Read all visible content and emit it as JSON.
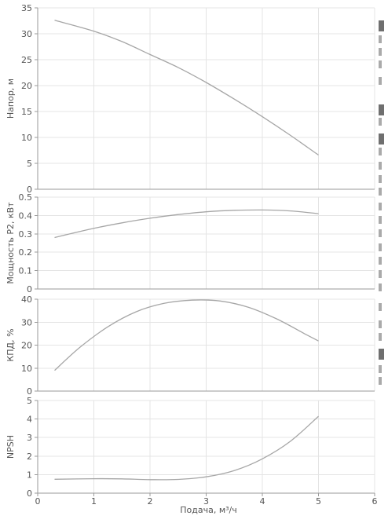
{
  "chart_data": [
    {
      "type": "line",
      "ylabel": "Напор, м",
      "ylim": [
        0,
        35
      ],
      "yticks": [
        0,
        5,
        10,
        15,
        20,
        25,
        30,
        35
      ],
      "xlim": [
        0,
        6
      ],
      "series": [
        {
          "x": [
            0.3,
            1.0,
            1.5,
            2.0,
            2.5,
            3.0,
            3.5,
            4.0,
            4.5,
            5.0
          ],
          "y": [
            32.6,
            30.5,
            28.5,
            26.0,
            23.5,
            20.6,
            17.4,
            14.0,
            10.4,
            6.6
          ]
        }
      ]
    },
    {
      "type": "line",
      "ylabel": "Мощность P2, кВт",
      "ylim": [
        0,
        0.5
      ],
      "yticks": [
        0,
        0.1,
        0.2,
        0.3,
        0.4,
        0.5
      ],
      "xlim": [
        0,
        6
      ],
      "series": [
        {
          "x": [
            0.3,
            1.0,
            1.5,
            2.0,
            2.5,
            3.0,
            3.5,
            4.0,
            4.5,
            5.0
          ],
          "y": [
            0.28,
            0.33,
            0.36,
            0.385,
            0.405,
            0.42,
            0.428,
            0.43,
            0.425,
            0.41
          ]
        }
      ]
    },
    {
      "type": "line",
      "ylabel": "КПД, %",
      "ylim": [
        0,
        40
      ],
      "yticks": [
        0,
        10,
        20,
        30,
        40
      ],
      "xlim": [
        0,
        6
      ],
      "series": [
        {
          "x": [
            0.3,
            0.75,
            1.25,
            1.75,
            2.25,
            2.75,
            3.25,
            3.75,
            4.25,
            4.75,
            5.0
          ],
          "y": [
            9.0,
            19.0,
            28.0,
            34.5,
            38.2,
            39.6,
            39.2,
            36.5,
            31.5,
            25.0,
            21.8
          ]
        }
      ]
    },
    {
      "type": "line",
      "ylabel": "NPSH",
      "xlabel": "Подача, м³/ч",
      "ylim": [
        0,
        5
      ],
      "yticks": [
        0,
        1,
        2,
        3,
        4,
        5
      ],
      "xlim": [
        0,
        6
      ],
      "xticks": [
        0,
        1,
        2,
        3,
        4,
        5,
        6
      ],
      "series": [
        {
          "x": [
            0.3,
            1.0,
            1.5,
            2.0,
            2.5,
            3.0,
            3.5,
            4.0,
            4.5,
            5.0
          ],
          "y": [
            0.75,
            0.78,
            0.77,
            0.73,
            0.74,
            0.88,
            1.22,
            1.85,
            2.8,
            4.15
          ]
        }
      ]
    }
  ]
}
